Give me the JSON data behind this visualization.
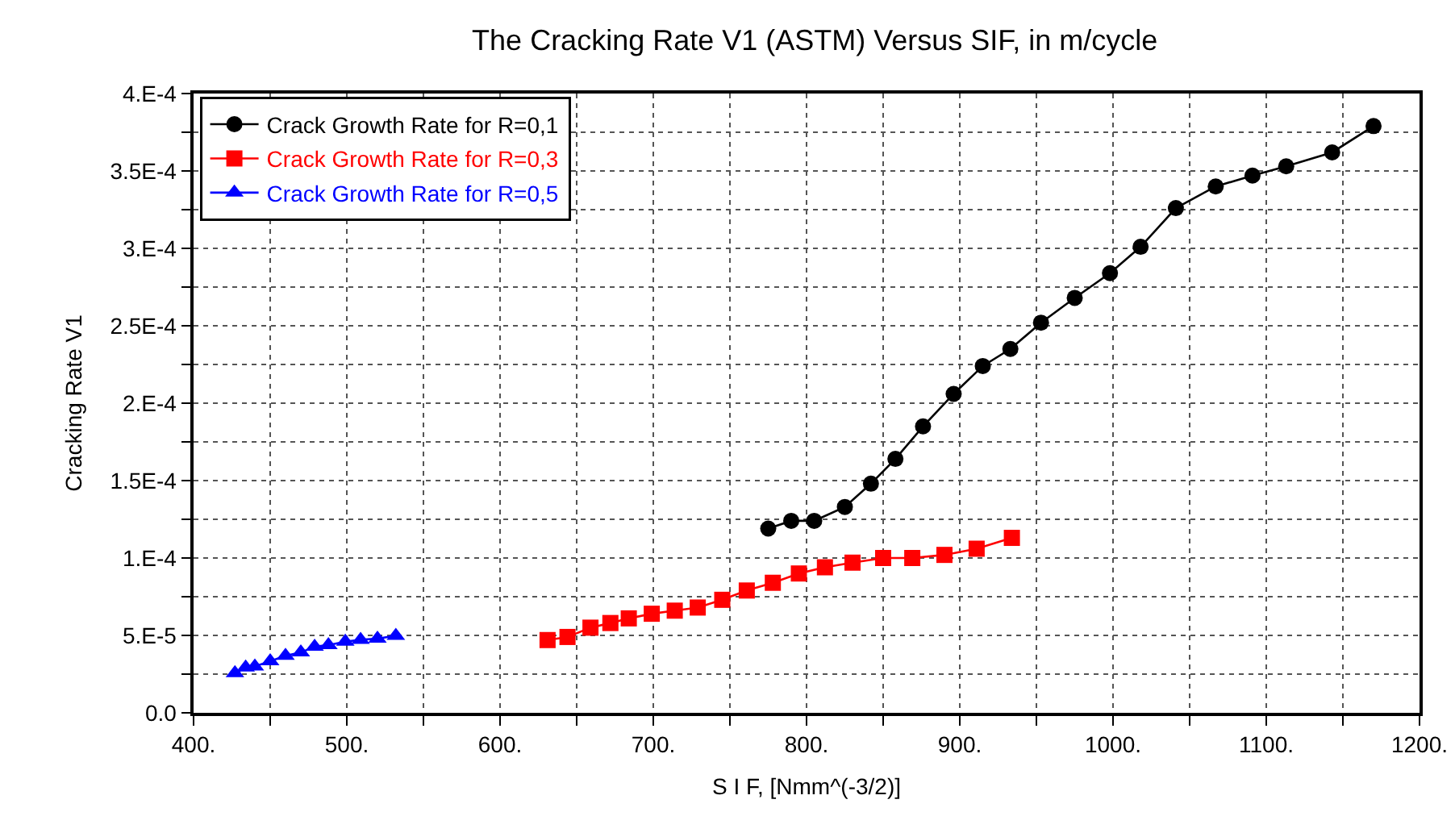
{
  "chart_data": {
    "type": "line",
    "title": "The Cracking Rate V1 (ASTM) Versus SIF, in m/cycle",
    "xlabel": "S I F, [Nmm^(-3/2)]",
    "ylabel": "Cracking Rate V1",
    "xlim": [
      400,
      1200
    ],
    "ylim": [
      0,
      0.0004
    ],
    "xticks": [
      {
        "value": 400,
        "label": "400."
      },
      {
        "value": 450,
        "label": null
      },
      {
        "value": 500,
        "label": "500."
      },
      {
        "value": 550,
        "label": null
      },
      {
        "value": 600,
        "label": "600."
      },
      {
        "value": 650,
        "label": null
      },
      {
        "value": 700,
        "label": "700."
      },
      {
        "value": 750,
        "label": null
      },
      {
        "value": 800,
        "label": "800."
      },
      {
        "value": 850,
        "label": null
      },
      {
        "value": 900,
        "label": "900."
      },
      {
        "value": 950,
        "label": null
      },
      {
        "value": 1000,
        "label": "1000."
      },
      {
        "value": 1050,
        "label": null
      },
      {
        "value": 1100,
        "label": "1100."
      },
      {
        "value": 1150,
        "label": null
      },
      {
        "value": 1200,
        "label": "1200."
      }
    ],
    "yticks": [
      {
        "value": 0,
        "label": "0.0"
      },
      {
        "value": 2.5e-05,
        "label": null
      },
      {
        "value": 5e-05,
        "label": "5.E-5"
      },
      {
        "value": 7.5e-05,
        "label": null
      },
      {
        "value": 0.0001,
        "label": "1.E-4"
      },
      {
        "value": 0.000125,
        "label": null
      },
      {
        "value": 0.00015,
        "label": "1.5E-4"
      },
      {
        "value": 0.000175,
        "label": null
      },
      {
        "value": 0.0002,
        "label": "2.E-4"
      },
      {
        "value": 0.000225,
        "label": null
      },
      {
        "value": 0.00025,
        "label": "2.5E-4"
      },
      {
        "value": 0.000275,
        "label": null
      },
      {
        "value": 0.0003,
        "label": "3.E-4"
      },
      {
        "value": 0.000325,
        "label": null
      },
      {
        "value": 0.00035,
        "label": "3.5E-4"
      },
      {
        "value": 0.000375,
        "label": null
      },
      {
        "value": 0.0004,
        "label": "4.E-4"
      }
    ],
    "grid": true,
    "legend": "top left",
    "line_style": "solid",
    "series": [
      {
        "name": "Crack Growth Rate for R=0,1",
        "color": "#000000",
        "marker": "circle",
        "x": [
          775,
          790,
          805,
          825,
          842,
          858,
          876,
          896,
          915,
          933,
          953,
          975,
          998,
          1018,
          1041,
          1067,
          1091,
          1113,
          1143,
          1170
        ],
        "values": [
          0.000119,
          0.000124,
          0.000124,
          0.000133,
          0.000148,
          0.000164,
          0.000185,
          0.000206,
          0.000224,
          0.000235,
          0.000252,
          0.000268,
          0.000284,
          0.000301,
          0.000326,
          0.00034,
          0.000347,
          0.000353,
          0.000362,
          0.000379
        ]
      },
      {
        "name": "Crack Growth Rate for R=0,3",
        "color": "#ff0000",
        "marker": "square",
        "x": [
          631,
          644,
          659,
          672,
          684,
          699,
          714,
          729,
          745,
          761,
          778,
          795,
          812,
          830,
          850,
          869,
          890,
          911,
          934
        ],
        "values": [
          4.7e-05,
          4.9e-05,
          5.5e-05,
          5.8e-05,
          6.1e-05,
          6.4e-05,
          6.6e-05,
          6.8e-05,
          7.3e-05,
          7.9e-05,
          8.4e-05,
          9e-05,
          9.4e-05,
          9.7e-05,
          0.0001,
          0.0001,
          0.000102,
          0.000106,
          0.000113
        ]
      },
      {
        "name": "Crack Growth Rate for R=0,5",
        "color": "#0000ff",
        "marker": "triangle",
        "x": [
          427,
          434,
          440,
          450,
          460,
          470,
          479,
          488,
          499,
          509,
          520,
          532
        ],
        "values": [
          2.56e-05,
          2.93e-05,
          3e-05,
          3.34e-05,
          3.68e-05,
          3.9e-05,
          4.27e-05,
          4.38e-05,
          4.6e-05,
          4.72e-05,
          4.79e-05,
          4.98e-05
        ]
      }
    ]
  }
}
